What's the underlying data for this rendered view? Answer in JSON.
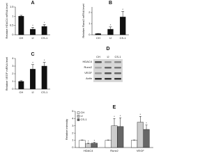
{
  "chart_data": [
    {
      "type": "bar",
      "panel": "A",
      "ylabel": "Relative HDAC4 mRNA level",
      "categories": [
        "CH",
        "IJ",
        "CS-1"
      ],
      "values": [
        1,
        0.3,
        0.45
      ],
      "errors": [
        0.05,
        0.1,
        0.1
      ],
      "stars": [
        null,
        "*",
        "*"
      ],
      "color": "#111111",
      "ylim": [
        0,
        1.5
      ],
      "yticks": [
        0,
        0.5,
        1,
        1.5
      ]
    },
    {
      "type": "bar",
      "panel": "B",
      "ylabel": "Relative Runx2 mRNA level",
      "categories": [
        "CH",
        "IJ",
        "CS-1"
      ],
      "values": [
        0.1,
        0.5,
        1.6
      ],
      "errors": [
        0.02,
        0.2,
        0.5
      ],
      "stars": [
        null,
        "*",
        "*"
      ],
      "color": "#111111",
      "ylim": [
        0,
        2.5
      ],
      "yticks": [
        0,
        1,
        2
      ]
    },
    {
      "type": "bar",
      "panel": "C",
      "ylabel": "Relative VEGF mRNA level",
      "categories": [
        "CH",
        "IJ",
        "CS-1"
      ],
      "values": [
        1,
        2.6,
        3
      ],
      "errors": [
        0.1,
        0.6,
        0.5
      ],
      "stars": [
        null,
        "*",
        "*"
      ],
      "color": "#111111",
      "ylim": [
        0,
        4
      ],
      "yticks": [
        0,
        1,
        2,
        3,
        4
      ]
    },
    {
      "type": "grouped-bar",
      "panel": "E",
      "ylabel": "Relative intensity",
      "categories": [
        "HDAC4",
        "Runx2",
        "VEGF"
      ],
      "ylim": [
        0,
        5
      ],
      "yticks": [
        0,
        1,
        2,
        3,
        4,
        5
      ],
      "legend": "upper-left",
      "series": [
        {
          "name": "CH",
          "color": "#ffffff",
          "values": [
            1,
            1,
            1
          ],
          "errors": [
            0.05,
            0.05,
            0.05
          ],
          "stars": [
            null,
            null,
            null
          ]
        },
        {
          "name": "IJ",
          "color": "#cccccc",
          "values": [
            0.5,
            3,
            3.5
          ],
          "errors": [
            0.1,
            1,
            0.8
          ],
          "stars": [
            "*",
            "*",
            "*"
          ]
        },
        {
          "name": "CS-1",
          "color": "#666666",
          "values": [
            0.6,
            2.9,
            2.5
          ],
          "errors": [
            0.1,
            1.2,
            0.6
          ],
          "stars": [
            "*",
            "*",
            "*"
          ]
        }
      ]
    }
  ],
  "blot": {
    "panel": "D",
    "columns": [
      "CH",
      "IJ",
      "CS-1"
    ],
    "rows": [
      "HDAC4",
      "Runx2",
      "VEGF",
      "Actin"
    ]
  }
}
